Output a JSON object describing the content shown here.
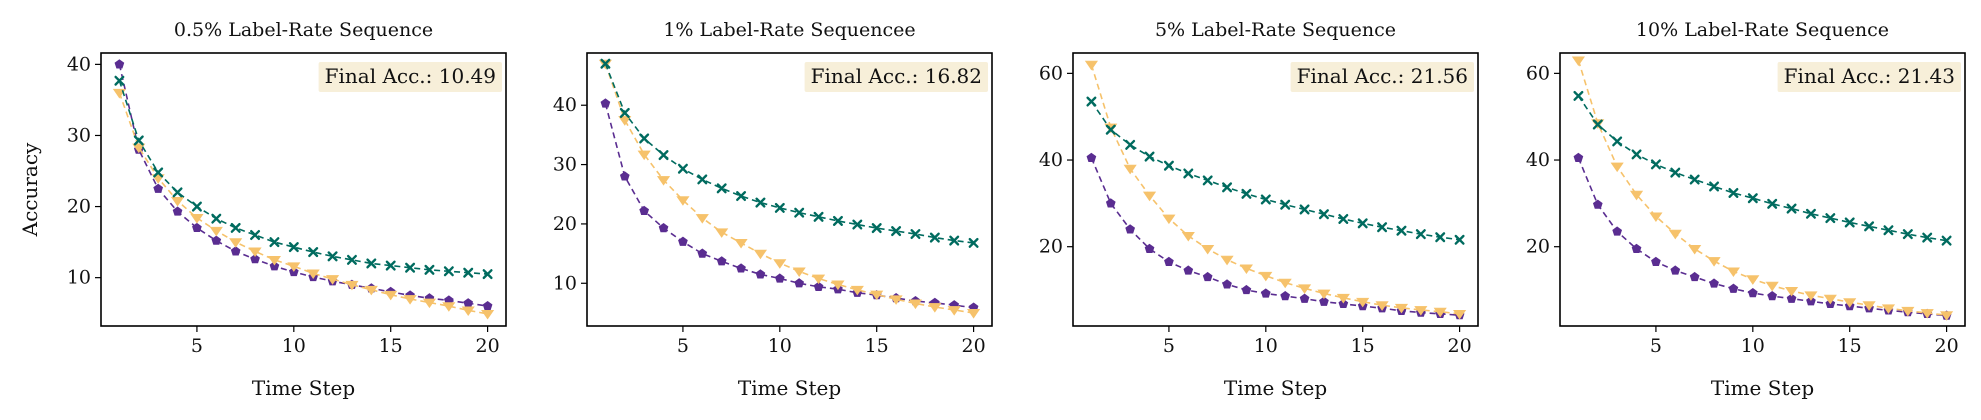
{
  "figure": {
    "ylabel": "Accuracy",
    "xlabel": "Time Step",
    "series_colors": [
      "#5a2d91",
      "#f6c26b",
      "#006b5f"
    ],
    "series_markers": [
      "pentagon",
      "triangle-down",
      "x"
    ],
    "badge_color": "#f7efd9"
  },
  "chart_data": [
    {
      "type": "line",
      "title": "0.5% Label-Rate Sequence",
      "annotation": "Final Acc.:  10.49",
      "xlabel": "Time Step",
      "ylabel": "Accuracy",
      "xlim": [
        0.05,
        20.95
      ],
      "ylim": [
        3.2,
        41.6
      ],
      "xticks": [
        5,
        10,
        15,
        20
      ],
      "yticks": [
        10,
        20,
        30,
        40
      ],
      "x": [
        1,
        2,
        3,
        4,
        5,
        6,
        7,
        8,
        9,
        10,
        11,
        12,
        13,
        14,
        15,
        16,
        17,
        18,
        19,
        20
      ],
      "series": [
        {
          "values": [
            40.0,
            28.0,
            22.5,
            19.3,
            17.0,
            15.2,
            13.7,
            12.6,
            11.6,
            10.8,
            10.1,
            9.5,
            9.0,
            8.5,
            8.0,
            7.5,
            7.1,
            6.8,
            6.4,
            6.0
          ]
        },
        {
          "values": [
            36.0,
            28.3,
            24.0,
            20.8,
            18.4,
            16.6,
            15.0,
            13.7,
            12.5,
            11.6,
            10.6,
            9.8,
            9.0,
            8.3,
            7.6,
            7.0,
            6.5,
            6.0,
            5.4,
            4.9
          ]
        },
        {
          "values": [
            37.7,
            29.3,
            24.8,
            22.0,
            20.0,
            18.3,
            17.0,
            16.0,
            15.0,
            14.3,
            13.6,
            13.0,
            12.5,
            12.0,
            11.7,
            11.4,
            11.1,
            10.9,
            10.7,
            10.5
          ]
        }
      ]
    },
    {
      "type": "line",
      "title": "1% Label-Rate Sequencee",
      "annotation": "Final Acc.:  16.82",
      "xlabel": "Time Step",
      "ylabel": "",
      "xlim": [
        0.05,
        20.95
      ],
      "ylim": [
        2.8,
        48.8
      ],
      "xticks": [
        5,
        10,
        15,
        20
      ],
      "yticks": [
        10,
        20,
        30,
        40
      ],
      "x": [
        1,
        2,
        3,
        4,
        5,
        6,
        7,
        8,
        9,
        10,
        11,
        12,
        13,
        14,
        15,
        16,
        17,
        18,
        19,
        20
      ],
      "series": [
        {
          "values": [
            40.3,
            28.0,
            22.2,
            19.3,
            17.0,
            15.0,
            13.7,
            12.5,
            11.5,
            10.8,
            10.0,
            9.4,
            9.0,
            8.4,
            8.0,
            7.5,
            7.0,
            6.7,
            6.3,
            5.9
          ]
        },
        {
          "values": [
            47.0,
            37.5,
            31.7,
            27.4,
            24.0,
            21.0,
            18.6,
            16.8,
            15.0,
            13.4,
            12.0,
            10.8,
            9.8,
            8.9,
            8.1,
            7.3,
            6.6,
            6.0,
            5.5,
            5.0
          ]
        },
        {
          "values": [
            47.0,
            38.7,
            34.4,
            31.6,
            29.3,
            27.5,
            26.0,
            24.7,
            23.6,
            22.7,
            21.9,
            21.2,
            20.5,
            19.9,
            19.3,
            18.8,
            18.3,
            17.7,
            17.2,
            16.8
          ]
        }
      ]
    },
    {
      "type": "line",
      "title": "5% Label-Rate Sequence",
      "annotation": "Final Acc.:  21.56",
      "xlabel": "Time Step",
      "ylabel": "",
      "xlim": [
        0.05,
        20.95
      ],
      "ylim": [
        1.7,
        64.7
      ],
      "xticks": [
        5,
        10,
        15,
        20
      ],
      "yticks": [
        20,
        40,
        60
      ],
      "x": [
        1,
        2,
        3,
        4,
        5,
        6,
        7,
        8,
        9,
        10,
        11,
        12,
        13,
        14,
        15,
        16,
        17,
        18,
        19,
        20
      ],
      "series": [
        {
          "values": [
            40.5,
            30.0,
            24.0,
            19.5,
            16.5,
            14.5,
            13.0,
            11.3,
            10.0,
            9.2,
            8.6,
            8.0,
            7.3,
            6.8,
            6.3,
            5.8,
            5.2,
            4.8,
            4.5,
            4.2
          ]
        },
        {
          "values": [
            62.0,
            47.5,
            38.0,
            31.8,
            26.5,
            22.5,
            19.5,
            17.0,
            15.0,
            13.3,
            11.7,
            10.4,
            9.2,
            8.2,
            7.3,
            6.5,
            5.9,
            5.4,
            5.0,
            4.5
          ]
        },
        {
          "values": [
            53.5,
            47.0,
            43.5,
            40.8,
            38.7,
            36.9,
            35.3,
            33.7,
            32.2,
            30.9,
            29.7,
            28.6,
            27.5,
            26.4,
            25.4,
            24.5,
            23.7,
            22.9,
            22.2,
            21.6
          ]
        }
      ]
    },
    {
      "type": "line",
      "title": "10% Label-Rate Sequence",
      "annotation": "Final Acc.:  21.43",
      "xlabel": "Time Step",
      "ylabel": "",
      "xlim": [
        0.05,
        20.95
      ],
      "ylim": [
        1.7,
        64.7
      ],
      "xticks": [
        5,
        10,
        15,
        20
      ],
      "yticks": [
        20,
        40,
        60
      ],
      "x": [
        1,
        2,
        3,
        4,
        5,
        6,
        7,
        8,
        9,
        10,
        11,
        12,
        13,
        14,
        15,
        16,
        17,
        18,
        19,
        20
      ],
      "series": [
        {
          "values": [
            40.5,
            29.7,
            23.5,
            19.5,
            16.5,
            14.5,
            13.0,
            11.5,
            10.3,
            9.3,
            8.6,
            8.0,
            7.4,
            6.8,
            6.3,
            5.8,
            5.3,
            4.9,
            4.5,
            4.1
          ]
        },
        {
          "values": [
            63.0,
            48.5,
            38.5,
            32.0,
            27.0,
            23.0,
            19.5,
            16.7,
            14.3,
            12.5,
            11.0,
            9.8,
            8.8,
            8.0,
            7.2,
            6.5,
            5.8,
            5.2,
            4.7,
            4.2
          ]
        },
        {
          "values": [
            54.8,
            48.2,
            44.3,
            41.3,
            39.0,
            37.1,
            35.5,
            33.9,
            32.4,
            31.2,
            29.9,
            28.8,
            27.6,
            26.6,
            25.6,
            24.7,
            23.8,
            22.9,
            22.1,
            21.4
          ]
        }
      ]
    }
  ]
}
